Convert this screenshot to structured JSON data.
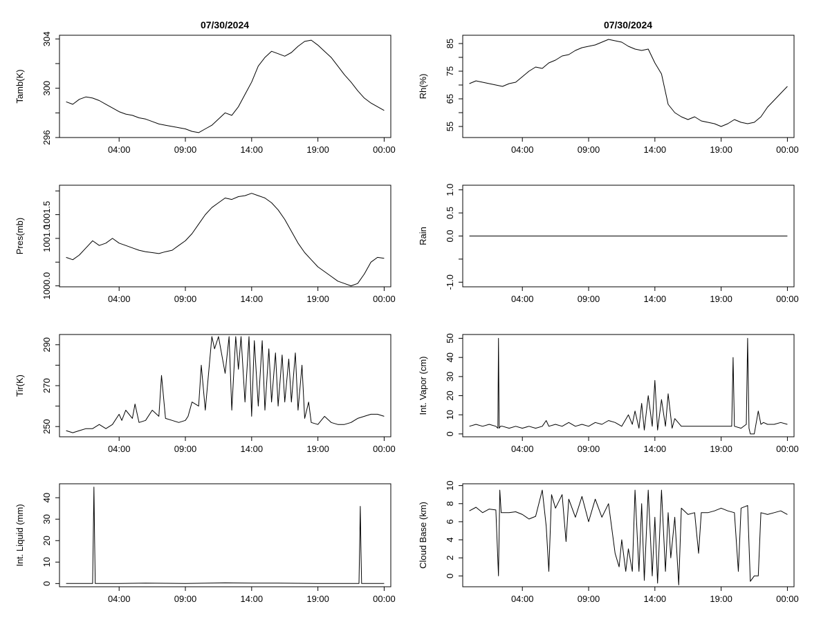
{
  "figure": {
    "titles": [
      "07/30/2024",
      "07/30/2024"
    ]
  },
  "chart_data": [
    {
      "type": "line",
      "title": "07/30/2024",
      "ylabel": "Tamb(K)",
      "xlabel": "",
      "x_ticks": [
        "04:00",
        "09:00",
        "14:00",
        "19:00",
        "00:00"
      ],
      "x_tick_hours": [
        4,
        9,
        14,
        19,
        24
      ],
      "xlim": [
        -0.5,
        24.5
      ],
      "ylim": [
        296,
        304.3
      ],
      "y_ticks": [
        296,
        300,
        304
      ],
      "y_minor_ticks": [
        298,
        302
      ],
      "series": [
        {
          "x": [
            0,
            0.5,
            1,
            1.5,
            2,
            2.5,
            3,
            3.5,
            4,
            4.5,
            5,
            5.5,
            6,
            6.5,
            7,
            7.5,
            8,
            8.5,
            9,
            9.5,
            10,
            10.5,
            11,
            11.5,
            12,
            12.5,
            13,
            13.5,
            14,
            14.5,
            15,
            15.5,
            16,
            16.5,
            17,
            17.5,
            18,
            18.5,
            19,
            19.5,
            20,
            20.5,
            21,
            21.5,
            22,
            22.5,
            23,
            23.5,
            24
          ],
          "y": [
            298.9,
            298.7,
            299.1,
            299.3,
            299.2,
            299.0,
            298.7,
            298.4,
            298.1,
            297.9,
            297.8,
            297.6,
            297.5,
            297.3,
            297.1,
            297.0,
            296.9,
            296.8,
            296.7,
            296.5,
            296.4,
            296.7,
            297.0,
            297.5,
            298.0,
            297.8,
            298.5,
            299.5,
            300.5,
            301.8,
            302.5,
            303.0,
            302.8,
            302.6,
            302.9,
            303.4,
            303.8,
            303.9,
            303.5,
            303.0,
            302.5,
            301.8,
            301.1,
            300.5,
            299.8,
            299.2,
            298.8,
            298.5,
            298.2
          ]
        }
      ]
    },
    {
      "type": "line",
      "title": "07/30/2024",
      "ylabel": "Rh(%)",
      "xlabel": "",
      "x_ticks": [
        "04:00",
        "09:00",
        "14:00",
        "19:00",
        "00:00"
      ],
      "x_tick_hours": [
        4,
        9,
        14,
        19,
        24
      ],
      "xlim": [
        -0.5,
        24.5
      ],
      "ylim": [
        51,
        88
      ],
      "y_ticks": [
        55,
        65,
        75,
        85
      ],
      "y_minor_ticks": [
        60,
        70,
        80
      ],
      "series": [
        {
          "x": [
            0,
            0.5,
            1,
            1.5,
            2,
            2.5,
            3,
            3.5,
            4,
            4.5,
            5,
            5.5,
            6,
            6.5,
            7,
            7.5,
            8,
            8.5,
            9,
            9.5,
            10,
            10.5,
            11,
            11.5,
            12,
            12.5,
            13,
            13.5,
            14,
            14.5,
            15,
            15.5,
            16,
            16.5,
            17,
            17.5,
            18,
            18.5,
            19,
            19.5,
            20,
            20.5,
            21,
            21.5,
            22,
            22.5,
            23,
            23.5,
            24
          ],
          "y": [
            70.5,
            71.5,
            71.0,
            70.5,
            70.0,
            69.5,
            70.5,
            71.0,
            73.0,
            75.0,
            76.5,
            76.0,
            78.0,
            79.0,
            80.5,
            81.0,
            82.5,
            83.5,
            84.0,
            84.5,
            85.5,
            86.5,
            86.0,
            85.5,
            84.0,
            83.0,
            82.5,
            83.0,
            78.0,
            74.0,
            63.0,
            60.0,
            58.5,
            57.5,
            58.5,
            57.0,
            56.5,
            56.0,
            55.0,
            56.0,
            57.5,
            56.5,
            56.0,
            56.5,
            58.5,
            62.0,
            64.5,
            67.0,
            69.5
          ]
        }
      ]
    },
    {
      "type": "line",
      "title": "",
      "ylabel": "Pres(mb)",
      "xlabel": "",
      "x_ticks": [
        "04:00",
        "09:00",
        "14:00",
        "19:00",
        "00:00"
      ],
      "x_tick_hours": [
        4,
        9,
        14,
        19,
        24
      ],
      "xlim": [
        -0.5,
        24.5
      ],
      "ylim": [
        999.98,
        1002.12
      ],
      "y_ticks": [
        1000.0,
        1001.5
      ],
      "y_tick_labels": [
        "1000.0",
        "1001.5"
      ],
      "y_minor_ticks": [
        1000.5,
        1001.0,
        1002.0
      ],
      "y_minor_labels": [
        "",
        "1001.0",
        ""
      ],
      "series": [
        {
          "x": [
            0,
            0.5,
            1,
            1.5,
            2,
            2.5,
            3,
            3.5,
            4,
            4.5,
            5,
            5.5,
            6,
            6.5,
            7,
            7.5,
            8,
            8.5,
            9,
            9.5,
            10,
            10.5,
            11,
            11.5,
            12,
            12.5,
            13,
            13.5,
            14,
            14.5,
            15,
            15.5,
            16,
            16.5,
            17,
            17.5,
            18,
            18.5,
            19,
            19.5,
            20,
            20.5,
            21,
            21.5,
            22,
            22.5,
            23,
            23.5,
            24
          ],
          "y": [
            1000.6,
            1000.55,
            1000.65,
            1000.8,
            1000.95,
            1000.85,
            1000.9,
            1001.0,
            1000.9,
            1000.85,
            1000.8,
            1000.75,
            1000.72,
            1000.7,
            1000.68,
            1000.72,
            1000.75,
            1000.85,
            1000.95,
            1001.1,
            1001.3,
            1001.5,
            1001.65,
            1001.75,
            1001.85,
            1001.82,
            1001.88,
            1001.9,
            1001.95,
            1001.9,
            1001.85,
            1001.75,
            1001.6,
            1001.4,
            1001.15,
            1000.9,
            1000.7,
            1000.55,
            1000.4,
            1000.3,
            1000.2,
            1000.1,
            1000.05,
            1000.0,
            1000.05,
            1000.25,
            1000.5,
            1000.6,
            1000.58
          ]
        }
      ]
    },
    {
      "type": "line",
      "title": "",
      "ylabel": "Rain",
      "xlabel": "",
      "x_ticks": [
        "04:00",
        "09:00",
        "14:00",
        "19:00",
        "00:00"
      ],
      "x_tick_hours": [
        4,
        9,
        14,
        19,
        24
      ],
      "xlim": [
        -0.5,
        24.5
      ],
      "ylim": [
        -1.1,
        1.1
      ],
      "y_ticks": [
        -1.0,
        -0.5,
        0.0,
        0.5,
        1.0
      ],
      "y_tick_labels": [
        "-1.0",
        "",
        "0.0",
        "0.5",
        "1.0"
      ],
      "series": [
        {
          "x": [
            0,
            24
          ],
          "y": [
            0,
            0
          ]
        }
      ]
    },
    {
      "type": "line",
      "title": "",
      "ylabel": "Tir(K)",
      "xlabel": "",
      "x_ticks": [
        "04:00",
        "09:00",
        "14:00",
        "19:00",
        "00:00"
      ],
      "x_tick_hours": [
        4,
        9,
        14,
        19,
        24
      ],
      "xlim": [
        -0.5,
        24.5
      ],
      "ylim": [
        245,
        295
      ],
      "y_ticks": [
        250,
        270,
        290
      ],
      "y_minor_ticks": [
        260,
        280
      ],
      "series": [
        {
          "x": [
            0,
            0.5,
            1,
            1.5,
            2,
            2.5,
            3,
            3.5,
            4,
            4.2,
            4.5,
            5,
            5.2,
            5.5,
            6,
            6.5,
            7,
            7.2,
            7.5,
            8,
            8.5,
            9,
            9.2,
            9.5,
            10,
            10.2,
            10.5,
            11,
            11.2,
            11.5,
            12,
            12.3,
            12.5,
            12.8,
            13,
            13.2,
            13.5,
            13.8,
            14,
            14.2,
            14.5,
            14.8,
            15,
            15.3,
            15.5,
            15.8,
            16,
            16.3,
            16.5,
            16.8,
            17,
            17.3,
            17.5,
            17.8,
            18,
            18.3,
            18.5,
            19,
            19.5,
            20,
            20.5,
            21,
            21.5,
            22,
            22.5,
            23,
            23.5,
            24
          ],
          "y": [
            248,
            247,
            248,
            249,
            249,
            251,
            249,
            251,
            256,
            253,
            258,
            254,
            261,
            252,
            253,
            258,
            255,
            275,
            254,
            253,
            252,
            253,
            255,
            262,
            260,
            280,
            258,
            294,
            288,
            294,
            276,
            294,
            258,
            294,
            278,
            294,
            262,
            294,
            255,
            292,
            260,
            292,
            258,
            288,
            262,
            286,
            260,
            285,
            262,
            283,
            262,
            286,
            258,
            280,
            254,
            262,
            252,
            251,
            255,
            252,
            251,
            251,
            252,
            254,
            255,
            256,
            256,
            255
          ]
        }
      ]
    },
    {
      "type": "line",
      "title": "",
      "ylabel": "Int. Vapor (cm)",
      "xlabel": "",
      "x_ticks": [
        "04:00",
        "09:00",
        "14:00",
        "19:00",
        "00:00"
      ],
      "x_tick_hours": [
        4,
        9,
        14,
        19,
        24
      ],
      "xlim": [
        -0.5,
        24.5
      ],
      "ylim": [
        -1.5,
        52
      ],
      "y_ticks": [
        0,
        10,
        20,
        30,
        40,
        50
      ],
      "series": [
        {
          "x": [
            0,
            0.5,
            1,
            1.5,
            2,
            2.15,
            2.2,
            2.25,
            2.35,
            2.5,
            3,
            3.5,
            4,
            4.5,
            5,
            5.5,
            5.8,
            6,
            6.5,
            7,
            7.5,
            8,
            8.5,
            9,
            9.5,
            10,
            10.5,
            11,
            11.5,
            12,
            12.3,
            12.5,
            12.8,
            13,
            13.2,
            13.5,
            13.8,
            14,
            14.2,
            14.5,
            14.8,
            15,
            15.3,
            15.5,
            16,
            17,
            18,
            19,
            19.5,
            19.8,
            19.9,
            20,
            20.5,
            20.9,
            21,
            21.1,
            21.2,
            21.5,
            21.8,
            22,
            22.2,
            22.5,
            23,
            23.5,
            24
          ],
          "y": [
            4,
            5,
            4,
            5,
            4,
            3,
            50,
            3,
            4,
            4,
            3,
            4,
            3,
            4,
            3,
            4,
            7,
            4,
            5,
            4,
            6,
            4,
            5,
            4,
            6,
            5,
            7,
            6,
            4,
            10,
            5,
            12,
            3,
            16,
            2,
            20,
            4,
            28,
            2,
            18,
            4,
            21,
            3,
            8,
            4,
            4,
            4,
            4,
            4,
            4,
            40,
            4,
            3,
            5,
            50,
            3,
            0,
            0,
            12,
            5,
            6,
            5,
            5,
            6,
            5
          ]
        }
      ]
    },
    {
      "type": "line",
      "title": "",
      "ylabel": "Int. Liquid (mm)",
      "xlabel": "",
      "x_ticks": [
        "04:00",
        "09:00",
        "14:00",
        "19:00",
        "00:00"
      ],
      "x_tick_hours": [
        4,
        9,
        14,
        19,
        24
      ],
      "xlim": [
        -0.5,
        24.5
      ],
      "ylim": [
        -1.5,
        46.5
      ],
      "y_ticks": [
        0,
        10,
        20,
        30,
        40
      ],
      "series": [
        {
          "x": [
            0,
            1.5,
            2.0,
            2.05,
            2.1,
            2.15,
            2.2,
            4,
            6,
            9,
            12,
            14,
            16,
            19,
            21.0,
            22.1,
            22.15,
            22.2,
            22.25,
            22.3,
            24
          ],
          "y": [
            0,
            0,
            0,
            23,
            45,
            20,
            0,
            0,
            0.2,
            0,
            0.3,
            0.2,
            0.2,
            0,
            0,
            0,
            18,
            36,
            15,
            0,
            0
          ]
        }
      ]
    },
    {
      "type": "line",
      "title": "",
      "ylabel": "Cloud Base (km)",
      "xlabel": "",
      "x_ticks": [
        "04:00",
        "09:00",
        "14:00",
        "19:00",
        "00:00"
      ],
      "x_tick_hours": [
        4,
        9,
        14,
        19,
        24
      ],
      "xlim": [
        -0.5,
        24.5
      ],
      "ylim": [
        -1.2,
        10.2
      ],
      "y_ticks": [
        0,
        2,
        4,
        6,
        8,
        10
      ],
      "series": [
        {
          "x": [
            0,
            0.5,
            1,
            1.5,
            2,
            2.2,
            2.3,
            2.4,
            3,
            3.5,
            4,
            4.5,
            5,
            5.5,
            5.8,
            6,
            6.2,
            6.5,
            7,
            7.3,
            7.5,
            8,
            8.5,
            9,
            9.5,
            10,
            10.5,
            11,
            11.3,
            11.5,
            11.8,
            12,
            12.3,
            12.5,
            12.8,
            13,
            13.2,
            13.5,
            13.8,
            14,
            14.2,
            14.5,
            14.8,
            15,
            15.2,
            15.5,
            15.8,
            16,
            16.5,
            17,
            17.3,
            17.5,
            18,
            18.5,
            19,
            19.5,
            20,
            20.3,
            20.5,
            21,
            21.2,
            21.5,
            21.8,
            22,
            22.5,
            23,
            23.5,
            24
          ],
          "y": [
            7.2,
            7.6,
            7.0,
            7.4,
            7.3,
            0,
            9.5,
            7.0,
            7.0,
            7.1,
            6.8,
            6.3,
            6.6,
            9.5,
            5.5,
            0.5,
            9.0,
            7.5,
            9.0,
            3.8,
            8.5,
            6.5,
            8.8,
            6.0,
            8.5,
            6.5,
            8.0,
            2.5,
            1.0,
            4.0,
            0.5,
            3.0,
            0.5,
            9.5,
            0.5,
            8.0,
            -0.5,
            9.5,
            0,
            6.5,
            -0.8,
            9.5,
            0.5,
            7.0,
            2.0,
            6.5,
            -1.0,
            7.5,
            6.8,
            7.0,
            2.5,
            7.0,
            7.0,
            7.2,
            7.5,
            7.2,
            7.0,
            0.5,
            7.5,
            7.8,
            -0.6,
            0,
            0,
            7.0,
            6.8,
            7.0,
            7.2,
            6.8
          ]
        }
      ]
    }
  ]
}
